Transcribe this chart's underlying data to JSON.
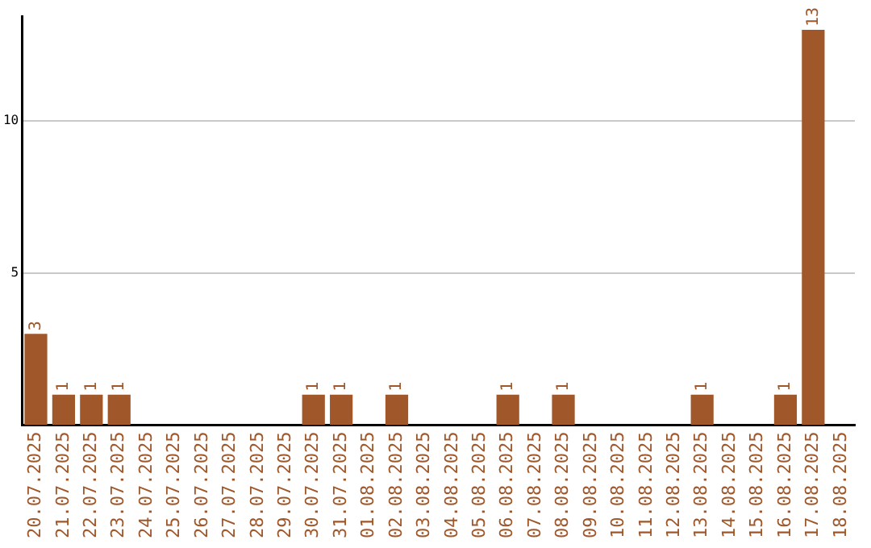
{
  "chart_data": {
    "type": "bar",
    "categories": [
      "20.07.2025",
      "21.07.2025",
      "22.07.2025",
      "23.07.2025",
      "24.07.2025",
      "25.07.2025",
      "26.07.2025",
      "27.07.2025",
      "28.07.2025",
      "29.07.2025",
      "30.07.2025",
      "31.07.2025",
      "01.08.2025",
      "02.08.2025",
      "03.08.2025",
      "04.08.2025",
      "05.08.2025",
      "06.08.2025",
      "07.08.2025",
      "08.08.2025",
      "09.08.2025",
      "10.08.2025",
      "11.08.2025",
      "12.08.2025",
      "13.08.2025",
      "14.08.2025",
      "15.08.2025",
      "16.08.2025",
      "17.08.2025",
      "18.08.2025"
    ],
    "values": [
      3,
      1,
      1,
      1,
      0,
      0,
      0,
      0,
      0,
      0,
      1,
      1,
      0,
      1,
      0,
      0,
      0,
      1,
      0,
      1,
      0,
      0,
      0,
      0,
      1,
      0,
      0,
      1,
      13,
      0
    ],
    "value_labels": [
      "3",
      "1",
      "1",
      "1",
      null,
      null,
      null,
      null,
      null,
      null,
      "1",
      "1",
      null,
      "1",
      null,
      null,
      null,
      "1",
      null,
      "1",
      null,
      null,
      null,
      null,
      "1",
      null,
      null,
      "1",
      "13",
      null
    ],
    "color": "#a0572a",
    "ylim": [
      0,
      13.45
    ],
    "yticks": [
      5,
      10
    ],
    "grid": "y",
    "legend": false
  }
}
